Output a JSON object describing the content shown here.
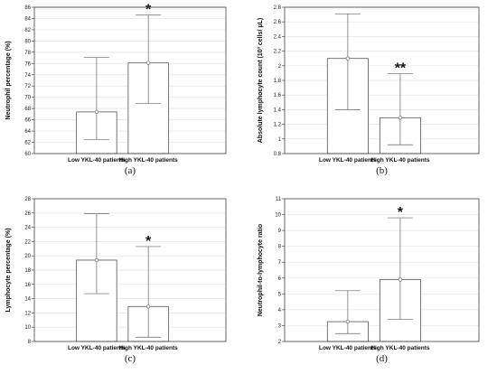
{
  "chart_data": [
    {
      "type": "bar",
      "caption": "(a)",
      "ylabel": "Neutrophil percentage (%)",
      "ylim": [
        60,
        86
      ],
      "yticks": [
        60,
        62,
        64,
        66,
        68,
        70,
        72,
        74,
        76,
        78,
        80,
        82,
        84,
        86
      ],
      "categories": [
        "Low YKL-40 patients",
        "High YKL-40 patients"
      ],
      "values": [
        67.4,
        76.1
      ],
      "error_low": [
        62.5,
        68.9
      ],
      "error_high": [
        77.1,
        84.6
      ],
      "annotations": [
        "",
        "*"
      ],
      "grid": true
    },
    {
      "type": "bar",
      "caption": "(b)",
      "ylabel": "Absolute lymphocyte count (10³ cells/ μL)",
      "ylim": [
        0.8,
        2.8
      ],
      "yticks": [
        0.8,
        1.0,
        1.2,
        1.4,
        1.6,
        1.8,
        2.0,
        2.2,
        2.4,
        2.6,
        2.8
      ],
      "categories": [
        "Low YKL-40 patients",
        "High YKL-40 patients"
      ],
      "values": [
        2.1,
        1.29
      ],
      "error_low": [
        1.4,
        0.92
      ],
      "error_high": [
        2.71,
        1.89
      ],
      "annotations": [
        "",
        "**"
      ],
      "grid": true
    },
    {
      "type": "bar",
      "caption": "(c)",
      "ylabel": "Lymphocyte percentage (%)",
      "ylim": [
        8,
        28
      ],
      "yticks": [
        8,
        10,
        12,
        14,
        16,
        18,
        20,
        22,
        24,
        26,
        28
      ],
      "categories": [
        "Low YKL-40 patients",
        "High YKL-40 patients"
      ],
      "values": [
        19.4,
        12.9
      ],
      "error_low": [
        14.7,
        8.6
      ],
      "error_high": [
        25.9,
        21.3
      ],
      "annotations": [
        "",
        "*"
      ],
      "grid": true
    },
    {
      "type": "bar",
      "caption": "(d)",
      "ylabel": "Neutrophil-to-lymphocyte ratio",
      "ylim": [
        2,
        11
      ],
      "yticks": [
        2,
        3,
        4,
        5,
        6,
        7,
        8,
        9,
        10,
        11
      ],
      "categories": [
        "Low YKL-40 patients",
        "High YKL-40 patients"
      ],
      "values": [
        3.25,
        5.9
      ],
      "error_low": [
        2.5,
        3.4
      ],
      "error_high": [
        5.2,
        9.8
      ],
      "annotations": [
        "",
        "*"
      ],
      "grid": true
    }
  ]
}
